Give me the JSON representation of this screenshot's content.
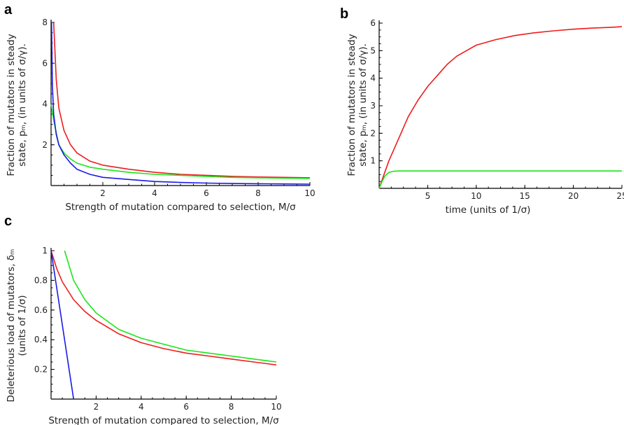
{
  "colors": {
    "red": "#ee1c1c",
    "green": "#1be51b",
    "blue": "#1a1ae6"
  },
  "chart_data": [
    {
      "panel": "a",
      "type": "line",
      "xlabel": "Strength of mutation compared to selection, M/σ",
      "ylabel_line1": "Fraction of mutators in steady",
      "ylabel_line2": "state, pₘ, (in units of σ/γ).",
      "xlim": [
        0,
        10
      ],
      "ylim": [
        0,
        8
      ],
      "xticks": [
        2,
        4,
        6,
        8,
        10
      ],
      "yticks": [
        2,
        4,
        6,
        8
      ],
      "series": [
        {
          "color": "red",
          "x": [
            0.1,
            0.2,
            0.3,
            0.5,
            0.75,
            1,
            1.5,
            2,
            3,
            4,
            5,
            6,
            7,
            8,
            9,
            10
          ],
          "y": [
            8,
            5.2,
            3.8,
            2.7,
            2.0,
            1.6,
            1.2,
            1.0,
            0.8,
            0.65,
            0.55,
            0.5,
            0.45,
            0.42,
            0.4,
            0.38
          ]
        },
        {
          "color": "green",
          "x": [
            0,
            0.1,
            0.2,
            0.3,
            0.5,
            0.75,
            1,
            1.5,
            2,
            3,
            4,
            5,
            6,
            7,
            8,
            9,
            10
          ],
          "y": [
            4,
            3.2,
            2.6,
            2.0,
            1.6,
            1.3,
            1.1,
            0.9,
            0.8,
            0.65,
            0.55,
            0.5,
            0.45,
            0.4,
            0.38,
            0.36,
            0.35
          ]
        },
        {
          "color": "blue",
          "x": [
            0.02,
            0.05,
            0.1,
            0.2,
            0.3,
            0.5,
            0.75,
            1,
            1.5,
            2,
            3,
            4,
            5,
            6,
            7,
            8,
            9,
            10
          ],
          "y": [
            8,
            5,
            3.5,
            2.5,
            2.0,
            1.5,
            1.1,
            0.8,
            0.55,
            0.4,
            0.3,
            0.2,
            0.15,
            0.12,
            0.1,
            0.09,
            0.08,
            0.07
          ]
        }
      ]
    },
    {
      "panel": "b",
      "type": "line",
      "xlabel": "time (units of 1/σ)",
      "ylabel_line1": "Fraction of mutators in steady",
      "ylabel_line2": "state, pₘ, (in units of σ/γ).",
      "xlim": [
        0,
        25
      ],
      "ylim": [
        0,
        6
      ],
      "xticks": [
        5,
        10,
        15,
        20,
        25
      ],
      "yticks": [
        1,
        2,
        3,
        4,
        5,
        6
      ],
      "series": [
        {
          "color": "red",
          "x": [
            0,
            0.5,
            1,
            2,
            3,
            4,
            5,
            6,
            7,
            8,
            9,
            10,
            12,
            14,
            16,
            18,
            20,
            22,
            24,
            25
          ],
          "y": [
            0,
            0.5,
            1.0,
            1.8,
            2.6,
            3.2,
            3.7,
            4.1,
            4.5,
            4.8,
            5.0,
            5.2,
            5.4,
            5.55,
            5.65,
            5.72,
            5.78,
            5.82,
            5.85,
            5.87
          ]
        },
        {
          "color": "green",
          "x": [
            0,
            0.3,
            0.6,
            1,
            1.5,
            2,
            5,
            10,
            15,
            20,
            25
          ],
          "y": [
            0,
            0.25,
            0.45,
            0.58,
            0.62,
            0.63,
            0.63,
            0.63,
            0.63,
            0.63,
            0.63
          ]
        }
      ]
    },
    {
      "panel": "c",
      "type": "line",
      "xlabel": "Strength of mutation compared to selection, M/σ",
      "ylabel_line1": "Deleterious load of mutators, δₘ",
      "ylabel_line2": "(units of 1/σ)",
      "xlim": [
        0,
        10
      ],
      "ylim": [
        0,
        1
      ],
      "xticks": [
        2,
        4,
        6,
        8,
        10
      ],
      "yticks": [
        0.2,
        0.4,
        0.6,
        0.8,
        1
      ],
      "series": [
        {
          "color": "red",
          "x": [
            0,
            0.25,
            0.5,
            1,
            1.5,
            2,
            3,
            4,
            5,
            6,
            7,
            8,
            9,
            10
          ],
          "y": [
            1,
            0.88,
            0.79,
            0.67,
            0.59,
            0.53,
            0.44,
            0.38,
            0.34,
            0.31,
            0.29,
            0.27,
            0.25,
            0.23
          ]
        },
        {
          "color": "green",
          "x": [
            0.6,
            1,
            1.5,
            2,
            3,
            4,
            5,
            6,
            7,
            8,
            9,
            10
          ],
          "y": [
            1.0,
            0.8,
            0.67,
            0.58,
            0.47,
            0.41,
            0.37,
            0.33,
            0.31,
            0.29,
            0.27,
            0.25
          ]
        },
        {
          "color": "blue",
          "x": [
            0,
            1
          ],
          "y": [
            1,
            0
          ]
        }
      ]
    }
  ]
}
